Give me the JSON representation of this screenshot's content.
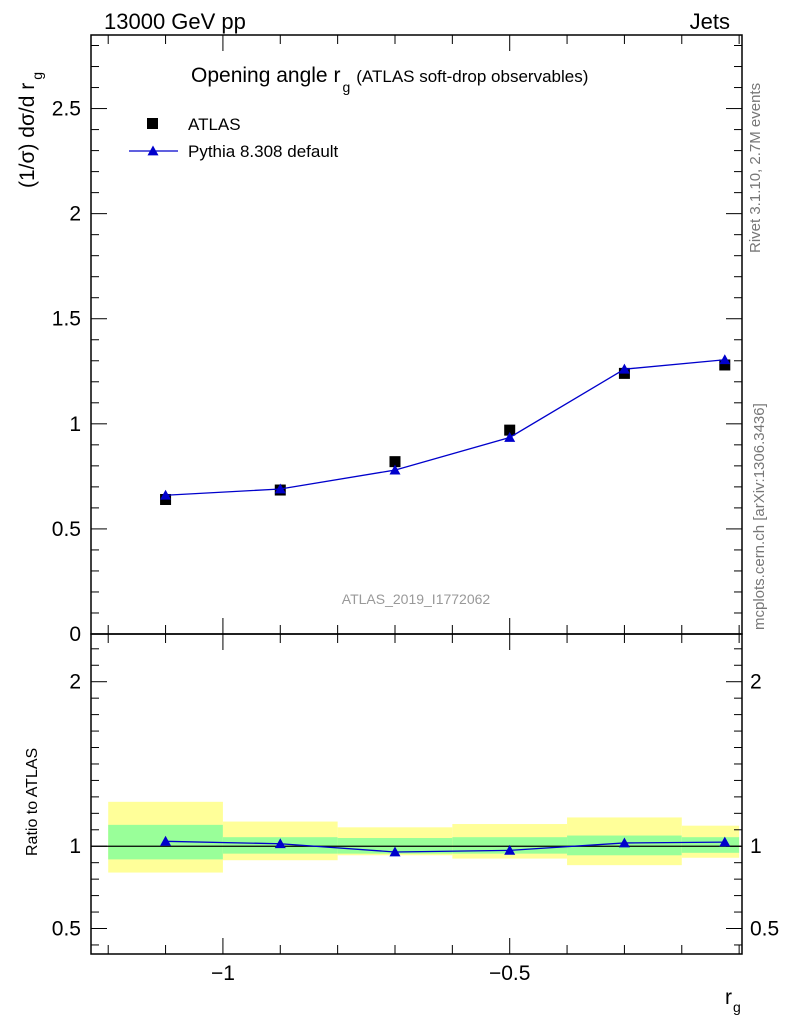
{
  "header": {
    "left": "13000 GeV pp",
    "right": "Jets"
  },
  "side_labels": {
    "rivet": "Rivet 3.1.10,  2.7M events",
    "mcplots": "mcplots.cern.ch [arXiv:1306.3436]"
  },
  "chart_data": [
    {
      "type": "scatter",
      "title": "Opening angle r",
      "title_sub": "g",
      "title_suffix": "(ATLAS soft-drop observables)",
      "ylabel": "(1/σ) dσ/d r",
      "ylabel_sub": "g",
      "analysis_label": "ATLAS_2019_I1772062",
      "xlim": [
        -1.23,
        -0.095
      ],
      "ylim": [
        0,
        2.85
      ],
      "y_ticks": [
        0,
        0.5,
        1,
        1.5,
        2,
        2.5
      ],
      "y_tick_labels": [
        "0",
        "0.5",
        "1",
        "1.5",
        "2",
        "2.5"
      ],
      "legend_position": "top-left",
      "series": [
        {
          "name": "ATLAS",
          "marker": "square",
          "color": "#000000",
          "x": [
            -1.1,
            -0.9,
            -0.7,
            -0.5,
            -0.3,
            -0.125
          ],
          "y": [
            0.64,
            0.685,
            0.82,
            0.97,
            1.24,
            1.28
          ]
        },
        {
          "name": "Pythia 8.308 default",
          "marker": "triangle",
          "color": "#0000cc",
          "x": [
            -1.1,
            -0.9,
            -0.7,
            -0.5,
            -0.3,
            -0.125
          ],
          "y": [
            0.66,
            0.69,
            0.78,
            0.935,
            1.26,
            1.305
          ]
        }
      ]
    },
    {
      "type": "line",
      "ylabel": "Ratio to ATLAS",
      "xlabel": "r",
      "xlabel_sub": "g",
      "xlim": [
        -1.23,
        -0.095
      ],
      "ylim": [
        0.345,
        2.29
      ],
      "x_ticks": [
        -1,
        -0.5
      ],
      "x_tick_labels": [
        "−1",
        "−0.5"
      ],
      "y_ticks": [
        0.5,
        1,
        2
      ],
      "y_tick_labels": [
        "0.5",
        "1",
        "2"
      ],
      "bins": [
        {
          "lo": -1.2,
          "hi": -1.0,
          "inner": [
            0.92,
            1.13
          ],
          "outer": [
            0.84,
            1.27
          ]
        },
        {
          "lo": -1.0,
          "hi": -0.8,
          "inner": [
            0.955,
            1.055
          ],
          "outer": [
            0.915,
            1.15
          ]
        },
        {
          "lo": -0.8,
          "hi": -0.6,
          "inner": [
            0.955,
            1.05
          ],
          "outer": [
            0.945,
            1.115
          ]
        },
        {
          "lo": -0.6,
          "hi": -0.4,
          "inner": [
            0.955,
            1.055
          ],
          "outer": [
            0.925,
            1.135
          ]
        },
        {
          "lo": -0.4,
          "hi": -0.2,
          "inner": [
            0.945,
            1.065
          ],
          "outer": [
            0.885,
            1.175
          ]
        },
        {
          "lo": -0.2,
          "hi": -0.1,
          "inner": [
            0.96,
            1.055
          ],
          "outer": [
            0.93,
            1.125
          ]
        }
      ],
      "band_colors": {
        "inner": "#99ff99",
        "outer": "#ffff99"
      },
      "series": [
        {
          "marker": "triangle",
          "color": "#0000cc",
          "x": [
            -1.1,
            -0.9,
            -0.7,
            -0.5,
            -0.3,
            -0.125
          ],
          "y": [
            1.03,
            1.015,
            0.965,
            0.975,
            1.02,
            1.025
          ]
        }
      ]
    }
  ]
}
